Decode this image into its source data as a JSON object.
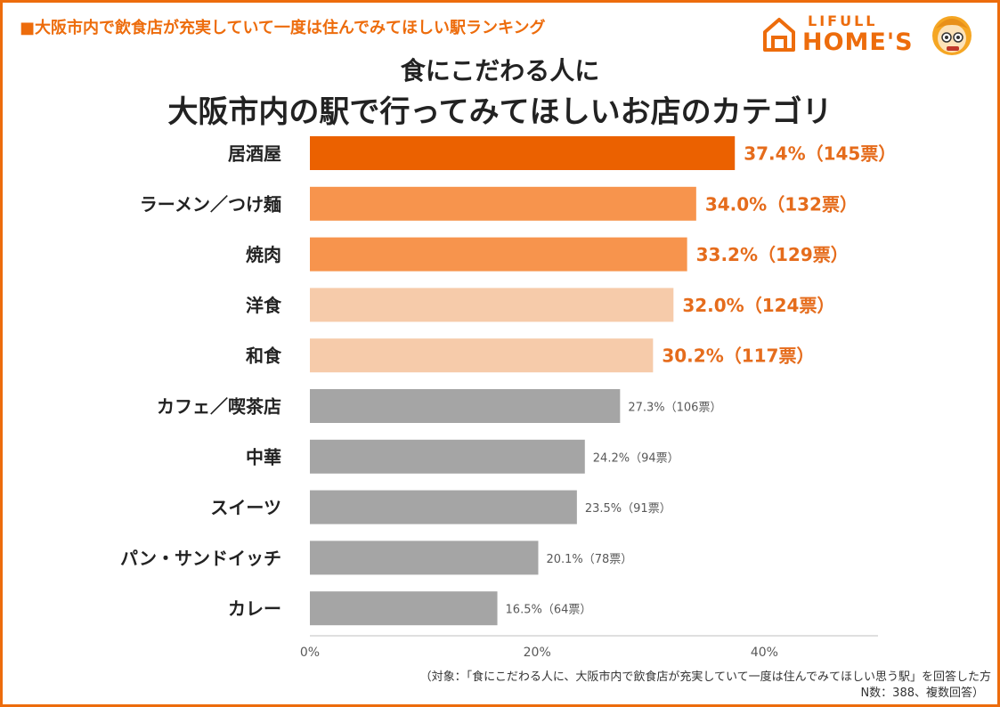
{
  "header": {
    "label": "■大阪市内で飲食店が充実していて一度は住んでみてほしい駅ランキング"
  },
  "logo": {
    "top": "LIFULL",
    "bottom": "HOME'S",
    "mascot": "mascot-icon",
    "house": "house-icon",
    "color": "#ED6C0C"
  },
  "chart_data": {
    "type": "bar",
    "orientation": "horizontal",
    "title_line1": "食にこだわる人に",
    "title_line2": "大阪市内の駅で行ってみてほしいお店のカテゴリ",
    "categories": [
      "居酒屋",
      "ラーメン／つけ麺",
      "焼肉",
      "洋食",
      "和食",
      "カフェ／喫茶店",
      "中華",
      "スイーツ",
      "パン・サンドイッチ",
      "カレー"
    ],
    "values": [
      37.4,
      34.0,
      33.2,
      32.0,
      30.2,
      27.3,
      24.2,
      23.5,
      20.1,
      16.5
    ],
    "votes": [
      145,
      132,
      129,
      124,
      117,
      106,
      94,
      91,
      78,
      64
    ],
    "data_labels": [
      "37.4%（145票）",
      "34.0%（132票）",
      "33.2%（129票）",
      "32.0%（124票）",
      "30.2%（117票）",
      "27.3%（106票）",
      "24.2%（94票）",
      "23.5%（91票）",
      "20.1%（78票）",
      "16.5%（64票）"
    ],
    "bar_colors": [
      "#EB6100",
      "#F7944D",
      "#F7944D",
      "#F6CBAA",
      "#F6CBAA",
      "#A5A5A5",
      "#A5A5A5",
      "#A5A5A5",
      "#A5A5A5",
      "#A5A5A5"
    ],
    "label_colors": [
      "#E56C1C",
      "#E56C1C",
      "#E56C1C",
      "#E56C1C",
      "#E56C1C",
      "#595959",
      "#595959",
      "#595959",
      "#595959",
      "#595959"
    ],
    "xlim": [
      0,
      50
    ],
    "xticks": [
      "0%",
      "20%",
      "40%"
    ],
    "xtick_values": [
      0,
      20,
      40
    ],
    "xlabel": "",
    "ylabel": "",
    "grid": false,
    "legend": "none"
  },
  "footnote": {
    "line1": "（対象：「食にこだわる人に、大阪市内で飲食店が充実していて一度は住んでみてほしい思う駅」を回答した方",
    "line2": "N数：388、複数回答）"
  }
}
